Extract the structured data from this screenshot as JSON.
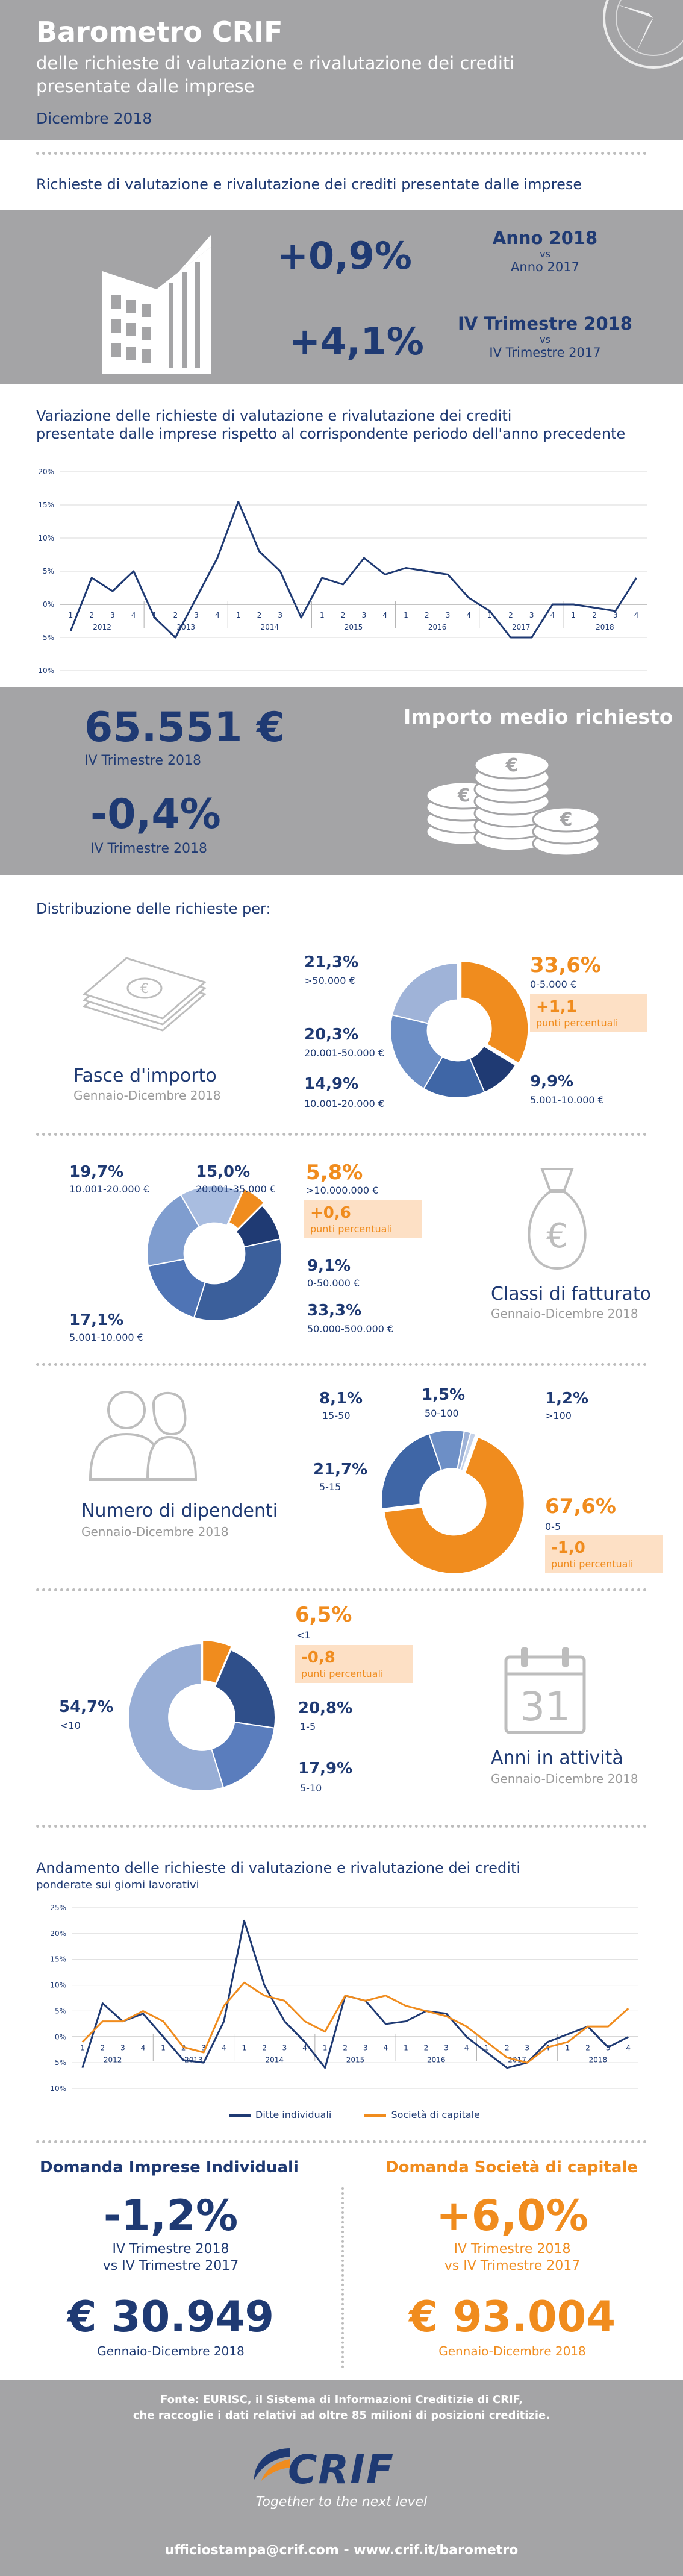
{
  "header": {
    "title": "Barometro CRIF",
    "subtitle_line1": "delle richieste di valutazione e rivalutazione dei crediti",
    "subtitle_line2": "presentate dalle imprese",
    "date": "Dicembre 2018"
  },
  "section1": {
    "title": "Richieste di valutazione e rivalutazione dei crediti presentate dalle imprese",
    "stat1": {
      "value": "+0,9%",
      "label1": "Anno 2018",
      "label2": "vs",
      "label3": "Anno 2017"
    },
    "stat2": {
      "value": "+4,1%",
      "label1": "IV Trimestre 2018",
      "label2": "vs",
      "label3": "IV Trimestre 2017"
    }
  },
  "section2": {
    "title_line1": "Variazione delle richieste di valutazione e rivalutazione dei crediti",
    "title_line2": "presentate dalle imprese rispetto al corrispondente periodo dell'anno precedente"
  },
  "section3": {
    "stat1": {
      "value": "65.551 €",
      "label": "IV Trimestre 2018"
    },
    "stat2": {
      "value": "-0,4%",
      "label": "IV Trimestre 2018"
    },
    "title": "Importo medio richiesto"
  },
  "section4": {
    "title": "Distribuzione delle richieste per:",
    "fasce": {
      "title": "Fasce d'importo",
      "period": "Gennaio-Dicembre 2018",
      "slices": [
        {
          "pct": "33,6%",
          "label": "0-5.000 €",
          "value": 33.6,
          "color": "#f08c1e"
        },
        {
          "pct": "9,9%",
          "label": "5.001-10.000 €",
          "value": 9.9,
          "color": "#1f3a73"
        },
        {
          "pct": "14,9%",
          "label": "10.001-20.000 €",
          "value": 14.9,
          "color": "#3f66a6"
        },
        {
          "pct": "20,3%",
          "label": "20.001-50.000 €",
          "value": 20.3,
          "color": "#6d8fc6"
        },
        {
          "pct": "21,3%",
          "label": ">50.000 €",
          "value": 21.3,
          "color": "#9fb3d8"
        }
      ],
      "delta": "+1,1",
      "delta_unit": "punti percentuali"
    },
    "fatturato": {
      "title": "Classi di fatturato",
      "period": "Gennaio-Dicembre 2018",
      "slices": [
        {
          "pct": "9,1%",
          "label": "0-50.000 €",
          "value": 9.1,
          "color": "#1f3a73"
        },
        {
          "pct": "33,3%",
          "label": "50.000-500.000 €",
          "value": 33.3,
          "color": "#3b5f9b"
        },
        {
          "pct": "17,1%",
          "label": "5.001-10.000 €",
          "value": 17.1,
          "color": "#4f74b5"
        },
        {
          "pct": "19,7%",
          "label": "10.001-20.000 €",
          "value": 19.7,
          "color": "#7f9dcf"
        },
        {
          "pct": "15,0%",
          "label": "20.001-35.000 €",
          "value": 15.0,
          "color": "#a9bde0"
        },
        {
          "pct": "5,8%",
          "label": ">10.000.000 €",
          "value": 5.8,
          "color": "#f08c1e"
        }
      ],
      "delta": "+0,6",
      "delta_unit": "punti percentuali"
    },
    "dipendenti": {
      "title": "Numero di dipendenti",
      "period": "Gennaio-Dicembre 2018",
      "slices": [
        {
          "pct": "67,6%",
          "label": "0-5",
          "value": 67.6,
          "color": "#f08c1e"
        },
        {
          "pct": "21,7%",
          "label": "5-15",
          "value": 21.7,
          "color": "#3f66a6"
        },
        {
          "pct": "8,1%",
          "label": "15-50",
          "value": 8.1,
          "color": "#6d8fc6"
        },
        {
          "pct": "1,5%",
          "label": "50-100",
          "value": 1.5,
          "color": "#9fb3d8"
        },
        {
          "pct": "1,2%",
          "label": ">100",
          "value": 1.2,
          "color": "#c5d2e9"
        }
      ],
      "delta": "-1,0",
      "delta_unit": "punti percentuali"
    },
    "anni": {
      "title": "Anni in attività",
      "period": "Gennaio-Dicembre 2018",
      "slices": [
        {
          "pct": "6,5%",
          "label": "<1",
          "value": 6.5,
          "color": "#f08c1e"
        },
        {
          "pct": "20,8%",
          "label": "1-5",
          "value": 20.8,
          "color": "#2f4f8a"
        },
        {
          "pct": "17,9%",
          "label": "5-10",
          "value": 17.9,
          "color": "#5a7dbd"
        },
        {
          "pct": "54,7%",
          "label": "<10",
          "value": 54.7,
          "color": "#98aed6"
        }
      ],
      "delta": "-0,8",
      "delta_unit": "punti percentuali",
      "calendar_day": "31"
    }
  },
  "section5": {
    "title_line1": "Andamento delle richieste di valutazione e rivalutazione dei crediti",
    "title_line2": "ponderate sui giorni lavorativi"
  },
  "section6": {
    "left_title": "Domanda Imprese Individuali",
    "left_pct": "-1,2%",
    "left_sub1": "IV Trimestre 2018",
    "left_sub2": "vs IV Trimestre 2017",
    "left_amount": "€ 30.949",
    "left_period": "Gennaio-Dicembre 2018",
    "right_title": "Domanda Società di capitale",
    "right_pct": "+6,0%",
    "right_sub1": "IV Trimestre 2018",
    "right_sub2": "vs IV Trimestre 2017",
    "right_amount": "€ 93.004",
    "right_period": "Gennaio-Dicembre 2018"
  },
  "footer": {
    "source_line1": "Fonte: EURISC, il Sistema di Informazioni Creditizie di CRIF,",
    "source_line2": "che raccoglie i dati relativi ad oltre 85 milioni di posizioni creditizie.",
    "logo": "CRIF",
    "tagline": "Together to the next level",
    "contacts": "ufficiostampa@crif.com - www.crif.it/barometro"
  },
  "colors": {
    "navy": "#1f3a73",
    "orange": "#f08c1e",
    "grey_band": "#a4a4a6"
  },
  "chart_data": [
    {
      "type": "line",
      "title": "Variazione delle richieste di valutazione e rivalutazione dei crediti presentate dalle imprese rispetto al corrispondente periodo dell'anno precedente",
      "x": [
        "1",
        "2",
        "3",
        "4",
        "1",
        "2",
        "3",
        "4",
        "1",
        "2",
        "3",
        "4",
        "1",
        "2",
        "3",
        "4",
        "1",
        "2",
        "3",
        "4",
        "1",
        "2",
        "3",
        "4",
        "1",
        "2",
        "3",
        "4"
      ],
      "year_labels": [
        "2012",
        "2013",
        "2014",
        "2015",
        "2016",
        "2017",
        "2018"
      ],
      "yticks": [
        "20%",
        "15%",
        "10%",
        "5%",
        "0%",
        "-5%",
        "-10%"
      ],
      "ylim": [
        -10,
        20
      ],
      "series": [
        {
          "color": "#1f3a73",
          "values": [
            -4,
            4,
            2,
            5,
            -2,
            -5,
            1,
            7,
            15.5,
            8,
            5,
            -2,
            4,
            3,
            7,
            4.5,
            5.5,
            5,
            4.5,
            1,
            -1,
            -5,
            -5,
            0,
            0,
            -0.5,
            -1,
            4
          ]
        }
      ]
    },
    {
      "type": "line",
      "title": "Andamento delle richieste di valutazione e rivalutazione dei crediti ponderate sui giorni lavorativi",
      "x": [
        "1",
        "2",
        "3",
        "4",
        "1",
        "2",
        "3",
        "4",
        "1",
        "2",
        "3",
        "4",
        "1",
        "2",
        "3",
        "4",
        "1",
        "2",
        "3",
        "4",
        "1",
        "2",
        "3",
        "4",
        "1",
        "2",
        "3",
        "4"
      ],
      "year_labels": [
        "2012",
        "2013",
        "2014",
        "2015",
        "2016",
        "2017",
        "2018"
      ],
      "yticks": [
        "25%",
        "20%",
        "15%",
        "10%",
        "5%",
        "0%",
        "-5%",
        "-10%"
      ],
      "ylim": [
        -10,
        25
      ],
      "series": [
        {
          "name": "Ditte individuali",
          "color": "#1f3a73",
          "values": [
            -6,
            6.5,
            3,
            4.5,
            0,
            -4.5,
            -5,
            3,
            22.5,
            10,
            3,
            -1,
            -6,
            8,
            7,
            2.5,
            3,
            5,
            4.5,
            0,
            -3,
            -6,
            -5,
            -1,
            0.5,
            2,
            -2,
            0
          ]
        },
        {
          "name": "Società di capitale",
          "color": "#f08c1e",
          "values": [
            -1,
            3,
            3,
            5,
            3,
            -2,
            -3,
            6,
            10.5,
            8,
            7,
            3,
            1,
            8,
            7,
            8,
            6,
            5,
            4,
            2,
            -1,
            -4,
            -5,
            -2,
            -1,
            2,
            2,
            5.5
          ]
        }
      ]
    }
  ]
}
